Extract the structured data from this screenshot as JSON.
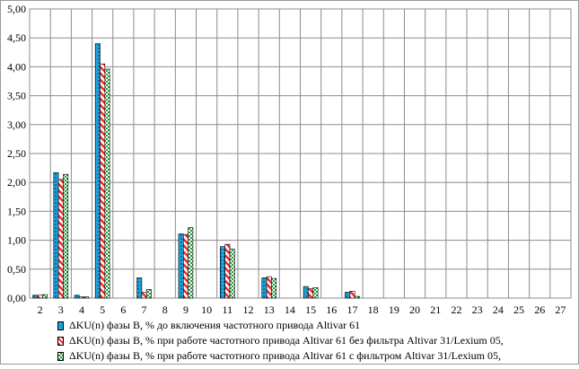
{
  "chart_data": {
    "type": "bar",
    "title": "",
    "xlabel": "",
    "ylabel": "",
    "ylim": [
      0,
      5
    ],
    "y_ticks": [
      "0,00",
      "0,50",
      "1,00",
      "1,50",
      "2,00",
      "2,50",
      "3,00",
      "3,50",
      "4,00",
      "4,50",
      "5,00"
    ],
    "categories": [
      "2",
      "3",
      "4",
      "5",
      "6",
      "7",
      "8",
      "9",
      "10",
      "11",
      "12",
      "13",
      "14",
      "15",
      "16",
      "17",
      "18",
      "19",
      "20",
      "21",
      "22",
      "23",
      "24",
      "25",
      "26",
      "27"
    ],
    "grid": true,
    "legend_position": "bottom",
    "series": [
      {
        "name": "ΔKU(n)  фазы В, % до включения частотного привода Altivar 61",
        "color": "#1fa3dd",
        "pattern": "dotted-blue",
        "values": [
          0.05,
          2.17,
          0.05,
          4.4,
          0,
          0.35,
          0,
          1.11,
          0,
          0.89,
          0,
          0.35,
          0,
          0.2,
          0,
          0.1,
          0,
          0,
          0,
          0,
          0,
          0,
          0,
          0,
          0,
          0
        ]
      },
      {
        "name": "ΔKU(n)  фазы В, % при работе частотного привода Altivar 61 без фильтра Altivar 31/Lexium 05,",
        "color": "#ff2020",
        "pattern": "red-diagonal",
        "values": [
          0.05,
          2.05,
          0.02,
          4.05,
          0,
          0.1,
          0,
          1.1,
          0,
          0.93,
          0,
          0.37,
          0,
          0.16,
          0,
          0.12,
          0,
          0,
          0,
          0,
          0,
          0,
          0,
          0,
          0,
          0
        ]
      },
      {
        "name": "ΔKU(n)  фазы В, % при работе частотного привода Altivar 61 с фильтром Altivar 31/Lexium 05,",
        "color": "#1f9a3a",
        "pattern": "green-check",
        "values": [
          0.06,
          2.14,
          0.02,
          3.96,
          0,
          0.15,
          0,
          1.22,
          0,
          0.85,
          0,
          0.34,
          0,
          0.18,
          0,
          0.03,
          0,
          0,
          0,
          0,
          0,
          0,
          0,
          0,
          0,
          0
        ]
      }
    ]
  }
}
